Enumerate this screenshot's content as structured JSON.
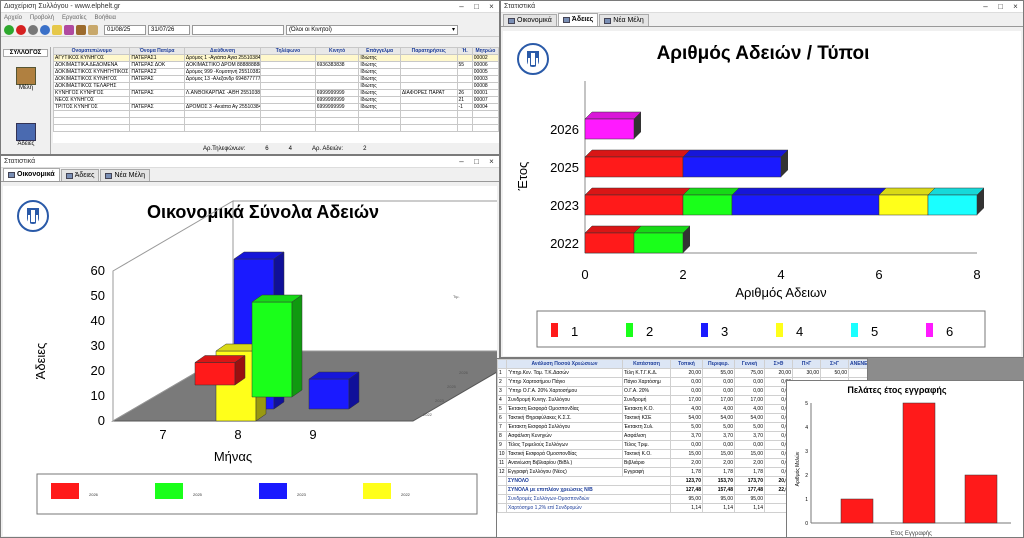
{
  "colors": {
    "red": "#ff1a1a",
    "green": "#1aff1a",
    "blue": "#1a1aff",
    "yellow": "#ffff1a",
    "cyan": "#1affff",
    "magenta": "#ff1aff",
    "navy": "#1a3b99"
  },
  "members_window": {
    "title": "Διαχείριση Συλλόγου - www.elphelt.gr",
    "menu": [
      "Αρχείο",
      "Προβολή",
      "Εργασίες",
      "Βοήθεια"
    ],
    "date_from": "01/08/25",
    "date_to": "31/07/26",
    "filter": "(Όλοι οι Κινητοί)",
    "sidebar_header": "ΣΥΛΛΟΓΟΣ",
    "sidebar_items": [
      "Μέλη",
      "Άδειες"
    ],
    "columns": [
      "Ονοματεπώνυμο",
      "Όνομα Πατέρα",
      "Διεύθυνση",
      "Τηλέφωνο",
      "Κινητό",
      "Επάγγελμα",
      "Παρατηρήσεις",
      "Ή.",
      "Μητρώο"
    ],
    "rows": [
      [
        "ΑΓΥΤΙΚΟΣ ΚΥΝΗΓΟΣ",
        "ΠΑΤΕΡΑΣ1",
        "Δρόμος 1 -Αγιάπα Αγια 2551038444",
        "",
        "",
        "Ιδιώτης",
        "",
        "",
        "00002"
      ],
      [
        "ΔΟΚΙΜΑΣΤΙΚΑ ΔΕΔΟΜΕΝΑ",
        "ΠΑΤΕΡΑΣ ΔΟΚ",
        "ΔΟΚΙΜΑΣΤΙΚΟ ΔΡΟΜ 8888888888",
        "",
        "6936383838",
        "Ιδιώτης",
        "",
        "55",
        "00006"
      ],
      [
        "ΔΟΚΙΜΑΣΤΙΚΟΣ ΚΥΝΗΓΗΤΙΚΟΣ",
        "ΠΑΤΕΡΑΣ2",
        "Δρόμος 999 -Κομοτηνή 2551038282",
        "",
        "",
        "Ιδιώτης",
        "",
        "",
        "00005"
      ],
      [
        "ΔΟΚΙΜΑΣΤΙΚΟΣ ΚΥΝΗΓΟΣ",
        "ΠΑΤΕΡΑΣ",
        "Δρόμος 13 -Αλεξανδρ 694877777",
        "",
        "",
        "Ιδιώτης",
        "",
        "",
        "00003"
      ],
      [
        "ΔΟΚΙΜΑΣΤΙΚΟΣ ΤΕΛΑΡΗΣ",
        "",
        "",
        "",
        "",
        "Ιδιώτης",
        "",
        "",
        "00008"
      ],
      [
        "ΚΥΝΗΓΟΣ ΚΥΝΗΓΟΣ",
        "ΠΑΤΕΡΑΣ",
        "Λ.ΑΝΘΟΚΑΡΠΑΣ -ΑΘΗ 2551038444",
        "",
        "6999999999",
        "Ιδιώτης",
        "ΔΙΑΦΟΡΕΣ ΠΑΡΑΤ",
        "26",
        "00001"
      ],
      [
        "ΝΕΟΣ ΚΥΝΗΓΟΣ",
        "",
        "",
        "",
        "6999999999",
        "Ιδιώτης",
        "",
        "21",
        "00007"
      ],
      [
        "ΤΡΙΤΟΣ ΚΥΝΗΓΟΣ",
        "ΠΑΤΕΡΑΣ",
        "ΔΡΟΜΟΣ 3 -Ακιάπα Αγ 2551038444",
        "",
        "6999999999",
        "Ιδιώτης",
        "",
        "-1",
        "00004"
      ]
    ],
    "footer": [
      "Αρ.Τηλεφώνων:",
      "6",
      "4",
      "Αρ. Αδειών:",
      "2"
    ]
  },
  "econ_window": {
    "title": "Στατιστικά",
    "tabs": [
      "Οικονομικά",
      "Άδειες",
      "Νέα Μέλη"
    ],
    "chart_data": {
      "type": "bar",
      "title": "Οικονομικά Σύνολα Αδειών",
      "xlabel": "Μήνας",
      "ylabel": "Άδειες",
      "categories": [
        "7",
        "8",
        "9"
      ],
      "ylim": [
        0,
        60
      ],
      "yticks": [
        "0",
        "10",
        "20",
        "30",
        "40",
        "50",
        "60"
      ],
      "series": [
        {
          "name": "2026",
          "color": "#ff1a1a",
          "values": [
            9,
            0,
            0
          ]
        },
        {
          "name": "2025",
          "color": "#1aff1a",
          "values": [
            0,
            38,
            0
          ]
        },
        {
          "name": "2023",
          "color": "#1a1aff",
          "values": [
            0,
            60,
            12
          ]
        },
        {
          "name": "2022",
          "color": "#ffff1a",
          "values": [
            0,
            28,
            0
          ]
        }
      ],
      "depth_labels": [
        "2022",
        "2023",
        "2025",
        "2026"
      ],
      "corner_label": "Τιμ."
    }
  },
  "licenses_window": {
    "title": "Στατιστικά",
    "tabs": [
      "Οικονομικά",
      "Άδειες",
      "Νέα Μέλη"
    ],
    "chart_data": {
      "type": "bar",
      "orientation": "horizontal",
      "stacked": true,
      "title": "Αριθμός Αδειών / Τύποι",
      "xlabel": "Αριθμός Αδειων",
      "ylabel": "Έτος",
      "categories": [
        "2026",
        "2025",
        "2023",
        "2022"
      ],
      "xlim": [
        0,
        8
      ],
      "xticks": [
        "0",
        "2",
        "4",
        "6",
        "8"
      ],
      "series": [
        {
          "name": "1",
          "color": "#ff1a1a",
          "values": [
            0,
            2,
            2,
            1
          ]
        },
        {
          "name": "2",
          "color": "#1aff1a",
          "values": [
            0,
            0,
            1,
            1
          ]
        },
        {
          "name": "3",
          "color": "#1a1aff",
          "values": [
            0,
            2,
            3,
            0
          ]
        },
        {
          "name": "4",
          "color": "#ffff1a",
          "values": [
            0,
            0,
            1,
            0
          ]
        },
        {
          "name": "5",
          "color": "#1affff",
          "values": [
            0,
            0,
            1,
            0
          ]
        },
        {
          "name": "6",
          "color": "#ff1aff",
          "values": [
            1,
            0,
            0,
            0
          ]
        }
      ]
    }
  },
  "analysis": {
    "columns": [
      "Ανάλυση Ποσού Χρεώσεων",
      "Κατάσταση",
      "Τοπική",
      "Περιφερ.",
      "Γενική",
      "Σ>Θ",
      "Π>Γ",
      "Σ>Γ",
      "ΑΝΕΝΕΡΓ"
    ],
    "rows": [
      [
        "1",
        "Ύπηρ.Κεν. Ταμ. Τ.Κ.Δασών",
        "Τέλη Κ.Τ.Γ.Κ.Δ.",
        "20,00",
        "55,00",
        "75,00",
        "20,00",
        "30,00",
        "50,00"
      ],
      [
        "2",
        "Ύπηρ Χαρτοσήμου Πάγιο",
        "Πάγιο Χαρτόσημ",
        "0,00",
        "0,00",
        "0,00",
        "0,00",
        "",
        ""
      ],
      [
        "3",
        "Ύπηρ Ο.Γ.Α. 20% Χαρτοσήμου",
        "Ο.Γ.Α. 20%",
        "0,00",
        "0,00",
        "0,00",
        "0,00",
        "",
        ""
      ],
      [
        "4",
        "Συνδρομή Κυνηγ. Συλλόγου",
        "Συνδρομή",
        "17,00",
        "17,00",
        "17,00",
        "0,00",
        "",
        ""
      ],
      [
        "5",
        "Έκτακτη Εισφορά Ομοσπονδίας",
        "Έκτακτη Κ.Ο.",
        "4,00",
        "4,00",
        "4,00",
        "0,00",
        "",
        ""
      ],
      [
        "6",
        "Τακτική Θηραφύλακες Κ.Σ.Σ.",
        "Τακτική ΚΣΕ",
        "54,00",
        "54,00",
        "54,00",
        "0,00",
        "",
        ""
      ],
      [
        "7",
        "Έκτακτη Εισφορά Συλλόγου",
        "Έκτακτη Συλ.",
        "5,00",
        "5,00",
        "5,00",
        "0,00",
        "",
        ""
      ],
      [
        "8",
        "Ασφάλιση Κυνηγών",
        "Ασφάλιση",
        "3,70",
        "3,70",
        "3,70",
        "0,00",
        "",
        ""
      ],
      [
        "9",
        "Τέλος Τριμελούς Συλλόγων",
        "Τέλος Τριμ.",
        "0,00",
        "0,00",
        "0,00",
        "0,00",
        "",
        ""
      ],
      [
        "10",
        "Τακτική Εισφορά Ομοσπονδίας",
        "Τακτική Κ.Ο.",
        "15,00",
        "15,00",
        "15,00",
        "0,00",
        "",
        ""
      ],
      [
        "11",
        "Ανανέωση Βιβλιαρίου (ΒιΒλ.)",
        "Βιβλιάριο",
        "2,00",
        "2,00",
        "2,00",
        "0,00",
        "",
        ""
      ],
      [
        "12",
        "Εγγραφή Συλλόγου (Νέος)",
        "Εγγραφή",
        "1,78",
        "1,78",
        "1,78",
        "0,00",
        "",
        ""
      ]
    ],
    "total_label": "ΣΥΝΟΛΟ",
    "total": [
      "123,70",
      "153,70",
      "173,70",
      "20,00"
    ],
    "total2_label": "ΣΥΝΟΛΑ με επιπλέον χρεώσεις Ν/Β",
    "total2": [
      "127,48",
      "157,48",
      "177,48",
      "22,00"
    ],
    "sub1_label": "Συνδρομές Συλλόγων-Ομοσπονδιών",
    "sub1": [
      "95,00",
      "95,00",
      "95,00"
    ],
    "sub2_label": "Χαρτόσημο 1,2% επί Συνδρομών",
    "sub2": [
      "1,14",
      "1,14",
      "1,14"
    ]
  },
  "new_members": {
    "chart_data": {
      "type": "bar",
      "title": "Πελάτες έτος εγγραφής",
      "xlabel": "Έτος Εγγραφής",
      "ylabel": "Αριθμός Μελών",
      "categories": [
        "",
        "",
        ""
      ],
      "values": [
        1,
        5,
        2
      ],
      "ylim": [
        0,
        5
      ],
      "yticks": [
        "0",
        "1",
        "2",
        "3",
        "4",
        "5"
      ],
      "color": "#ff1a1a"
    }
  }
}
